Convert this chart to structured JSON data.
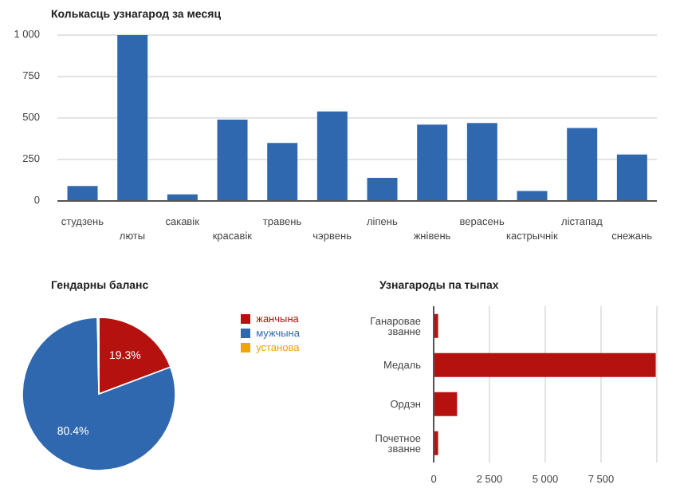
{
  "chart_data": [
    {
      "type": "bar",
      "title": "Колькасць узнагарод за месяц",
      "categories": [
        "студзень",
        "люты",
        "сакавік",
        "красавік",
        "травень",
        "чэрвень",
        "ліпень",
        "жнівень",
        "верасень",
        "кастрычнік",
        "лістапад",
        "снежань"
      ],
      "values": [
        90,
        1000,
        40,
        490,
        350,
        540,
        140,
        460,
        470,
        60,
        440,
        280
      ],
      "color": "#3068b0",
      "ylim": [
        0,
        1000
      ],
      "yticks": [
        0,
        250,
        500,
        750,
        {
          "value": 1000,
          "label": "1 000"
        }
      ],
      "grid": "y"
    },
    {
      "type": "pie",
      "title": "Гендарны баланс",
      "categories": [
        "жанчына",
        "мужчына",
        "установа"
      ],
      "values": [
        19.3,
        80.4,
        0.3
      ],
      "colors": [
        "#b5120f",
        "#3068b0",
        "#f0a30a"
      ],
      "value_labels": [
        "19.3%",
        "80.4%",
        null
      ],
      "legend": "right"
    },
    {
      "type": "bar",
      "orientation": "horizontal",
      "title": "Узнагароды па тыпах",
      "categories": [
        "Ганаровае званне",
        "Медаль",
        "Ордэн",
        "Почетное званне"
      ],
      "values": [
        200,
        9950,
        1050,
        200
      ],
      "color": "#b5120f",
      "xlim": [
        0,
        10000
      ],
      "xticks": [
        0,
        {
          "value": 2500,
          "label": "2 500"
        },
        {
          "value": 5000,
          "label": "5 000"
        },
        {
          "value": 7500,
          "label": "7 500"
        }
      ],
      "grid": "x"
    }
  ]
}
